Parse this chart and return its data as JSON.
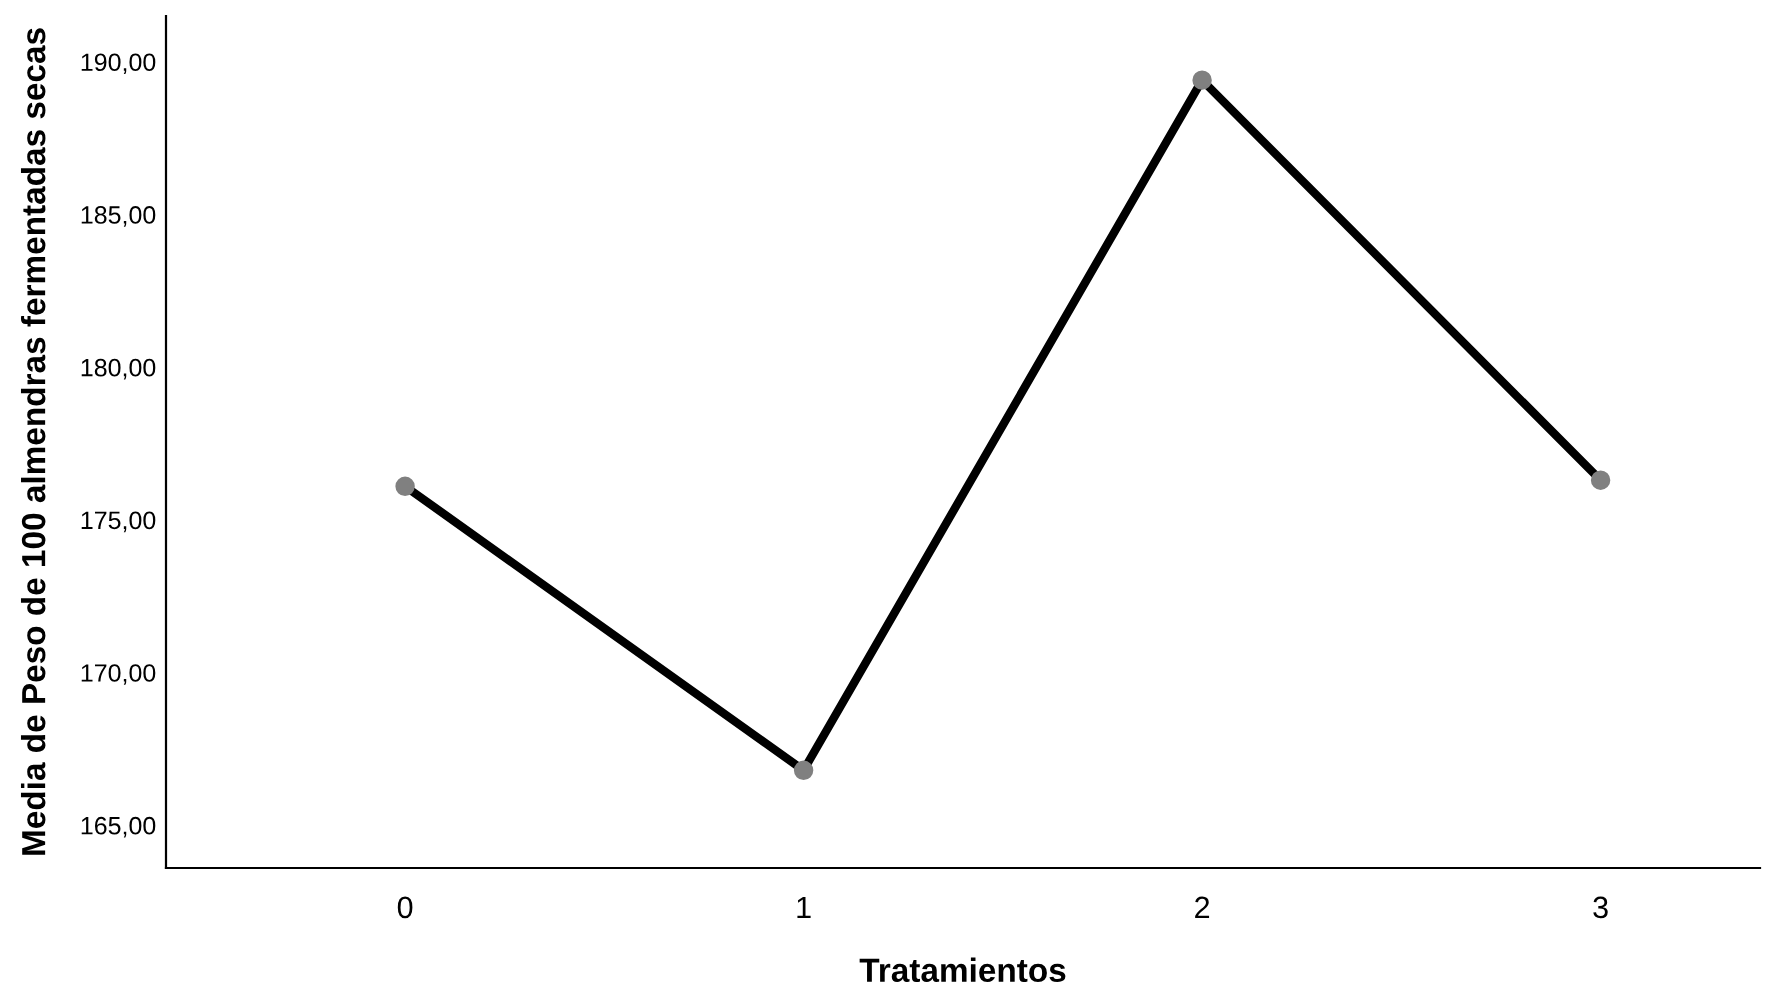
{
  "chart_data": {
    "type": "line",
    "xlabel": "Tratamientos",
    "ylabel": "Media de Peso de 100 almendras fermentadas secas",
    "categories": [
      "0",
      "1",
      "2",
      "3"
    ],
    "series": [
      {
        "color": "#000000",
        "values": [
          176.1,
          166.8,
          189.4,
          176.3
        ]
      }
    ],
    "ylim": [
      163.6,
      191.5
    ],
    "yticks": [
      {
        "value": 165,
        "label": "165,00"
      },
      {
        "value": 170,
        "label": "170,00"
      },
      {
        "value": 175,
        "label": "175,00"
      },
      {
        "value": 180,
        "label": "180,00"
      },
      {
        "value": 185,
        "label": "185,00"
      },
      {
        "value": 190,
        "label": "190,00"
      }
    ],
    "grid": false,
    "legend": false,
    "marker": "circle",
    "line_style": "solid"
  }
}
